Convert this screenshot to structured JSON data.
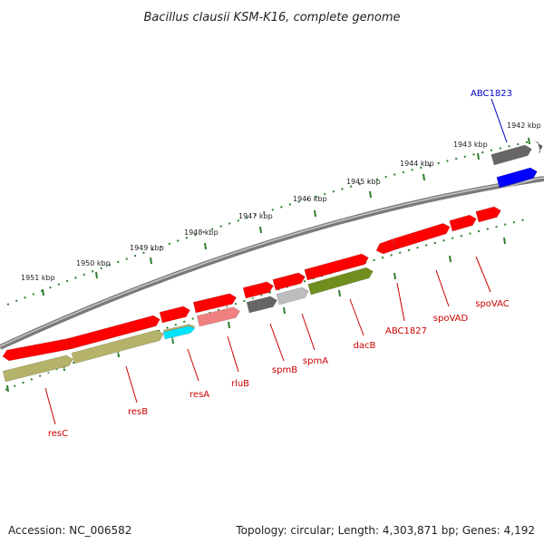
{
  "title": "Bacillus clausii KSM-K16, complete genome",
  "footer": {
    "accession": "Accession: NC_006582",
    "topology": "Topology: circular; Length: 4,303,871 bp; Genes: 4,192"
  },
  "ruler": {
    "kbp_labels": [
      "1951 kbp",
      "1950 kbp",
      "1949 kbp",
      "1948 kbp",
      "1947 kbp",
      "1946 kbp",
      "1945 kbp",
      "1944 kbp",
      "1943 kbp",
      "1942 kbp"
    ]
  },
  "genes": {
    "labels": [
      "resC",
      "resB",
      "resA",
      "rluB",
      "spmB",
      "spmA",
      "dacB",
      "ABC1827",
      "spoVAD",
      "spoVAC",
      "ABC1823"
    ]
  },
  "colors": {
    "gene_red": "#ff0000",
    "cds_olive": "#b5b26a",
    "cds_dark_olive": "#6f8e1e",
    "cds_cyan": "#00e5ff",
    "cds_pink": "#f08080",
    "cds_grey": "#666666",
    "cds_light_grey": "#bdbdbd",
    "cds_blue": "#0000ff",
    "ruler_green": "#2e7d2e",
    "backbone_grey": "#8c8c8c",
    "label_red": "#cc0000",
    "label_blue": "#0000cc"
  }
}
